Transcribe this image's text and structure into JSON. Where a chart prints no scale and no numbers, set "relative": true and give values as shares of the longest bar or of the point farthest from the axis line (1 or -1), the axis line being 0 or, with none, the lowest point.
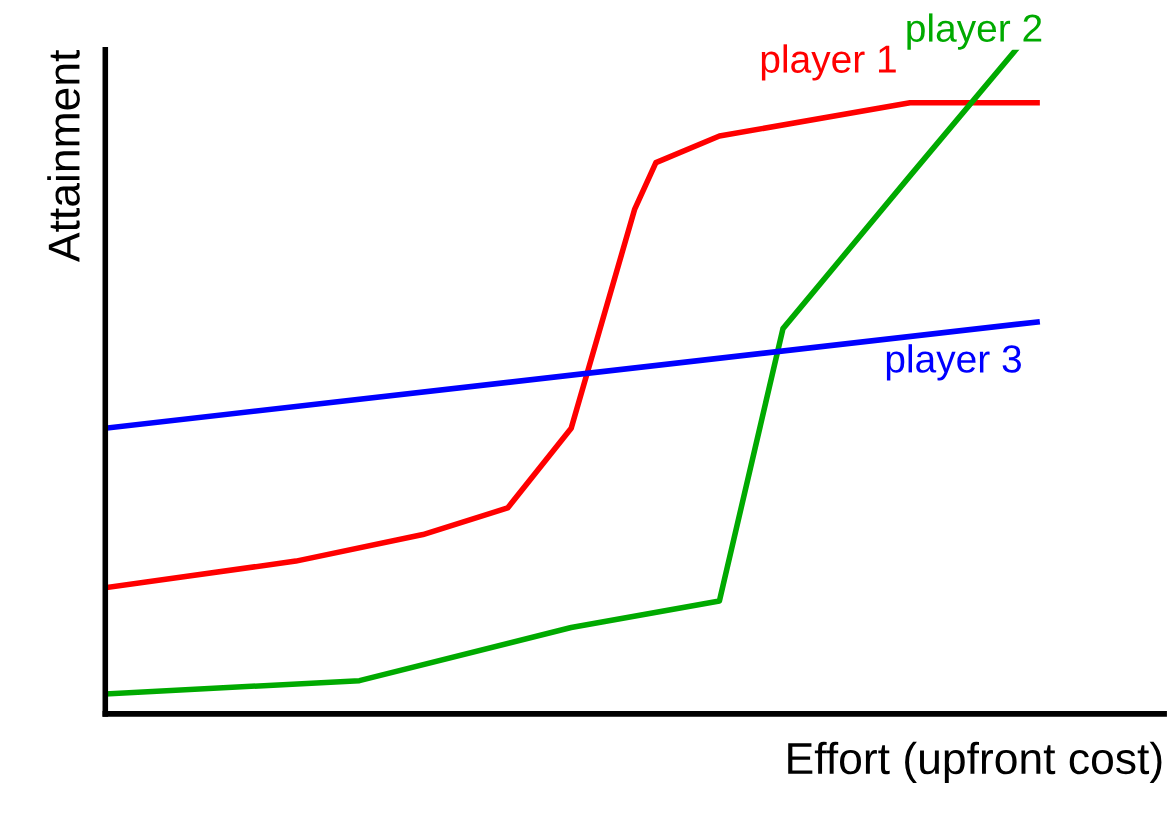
{
  "chart_data": {
    "type": "line",
    "relative": true,
    "xlabel": "Effort (upfront cost)",
    "ylabel": "Attainment",
    "tick_labels": false,
    "legend": false,
    "marker": "none",
    "line_style": "solid",
    "categories": [
      null,
      null,
      null,
      null,
      null,
      null,
      null,
      null,
      null,
      null,
      null,
      null,
      null,
      null,
      null,
      null,
      null,
      null,
      null,
      null,
      null,
      null,
      null,
      null,
      null,
      null,
      null,
      null,
      null,
      null,
      null,
      null,
      null,
      null,
      null,
      null,
      null,
      null,
      null,
      null,
      null,
      null,
      null,
      null,
      null
    ],
    "series": [
      {
        "name": "player 1",
        "color": "#ff0000",
        "values": [
          0.19,
          null,
          null,
          null,
          null,
          null,
          null,
          null,
          null,
          0.23,
          null,
          null,
          null,
          null,
          null,
          0.27,
          null,
          null,
          null,
          0.31,
          null,
          null,
          0.43,
          null,
          null,
          0.76,
          0.83,
          null,
          null,
          0.87,
          null,
          null,
          null,
          null,
          null,
          null,
          null,
          null,
          0.92,
          null,
          null,
          null,
          null,
          null,
          0.92
        ]
      },
      {
        "name": "player 2",
        "color": "#00aa00",
        "values": [
          0.03,
          null,
          null,
          null,
          null,
          null,
          null,
          null,
          null,
          null,
          null,
          null,
          0.05,
          null,
          null,
          null,
          null,
          null,
          null,
          null,
          null,
          null,
          0.13,
          null,
          null,
          null,
          null,
          null,
          null,
          0.17,
          null,
          null,
          0.58,
          null,
          null,
          null,
          null,
          null,
          0.81,
          null,
          null,
          null,
          null,
          1.0,
          null
        ]
      },
      {
        "name": "player 3",
        "color": "#0000ff",
        "values": [
          0.43,
          null,
          null,
          null,
          null,
          null,
          null,
          null,
          null,
          null,
          null,
          null,
          null,
          null,
          null,
          null,
          null,
          null,
          null,
          null,
          null,
          null,
          null,
          null,
          null,
          null,
          null,
          null,
          null,
          null,
          null,
          null,
          null,
          null,
          null,
          null,
          null,
          null,
          null,
          null,
          null,
          null,
          null,
          null,
          0.59
        ]
      }
    ]
  }
}
